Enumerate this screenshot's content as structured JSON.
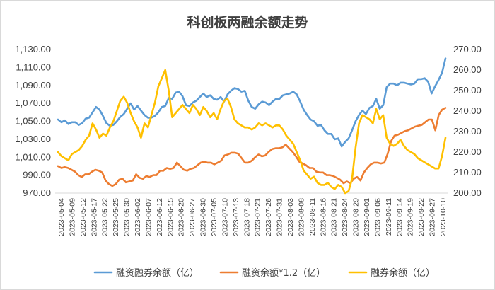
{
  "chart_data": {
    "type": "line",
    "title": "科创板两融余额走势",
    "grid": false,
    "legend_position": "bottom",
    "y_left": {
      "min": 970,
      "max": 1130,
      "ticks": [
        "970.00",
        "990.00",
        "1,010.00",
        "1,030.00",
        "1,050.00",
        "1,070.00",
        "1,090.00",
        "1,110.00",
        "1,130.00"
      ]
    },
    "y_right": {
      "min": 200,
      "max": 270,
      "ticks": [
        "200.00",
        "210.00",
        "220.00",
        "230.00",
        "240.00",
        "250.00",
        "260.00",
        "270.00"
      ]
    },
    "x_tick_labels": [
      "2023-05-04",
      "2023-05-09",
      "2023-05-12",
      "2023-05-17",
      "2023-05-22",
      "2023-05-25",
      "2023-05-30",
      "2023-06-02",
      "2023-06-07",
      "2023-06-12",
      "2023-06-15",
      "2023-06-20",
      "2023-06-27",
      "2023-06-30",
      "2023-07-05",
      "2023-07-10",
      "2023-07-13",
      "2023-07-18",
      "2023-07-21",
      "2023-07-26",
      "2023-07-31",
      "2023-08-03",
      "2023-08-08",
      "2023-08-11",
      "2023-08-16",
      "2023-08-21",
      "2023-08-24",
      "2023-08-29",
      "2023-09-01",
      "2023-09-06",
      "2023-09-11",
      "2023-09-14",
      "2023-09-19",
      "2023-09-22",
      "2023-09-27",
      "2023-10-10"
    ],
    "series": [
      {
        "name": "融资融券余额（亿）",
        "axis": "left",
        "color": "#5B9BD5",
        "values": [
          1052,
          1049,
          1051,
          1047,
          1049,
          1049,
          1046,
          1048,
          1053,
          1054,
          1060,
          1066,
          1063,
          1056,
          1048,
          1045,
          1046,
          1050,
          1055,
          1058,
          1064,
          1070,
          1063,
          1067,
          1062,
          1057,
          1054,
          1054,
          1056,
          1060,
          1066,
          1067,
          1076,
          1075,
          1082,
          1083,
          1078,
          1068,
          1067,
          1071,
          1073,
          1077,
          1081,
          1077,
          1079,
          1075,
          1074,
          1077,
          1072,
          1080,
          1084,
          1087,
          1086,
          1083,
          1084,
          1073,
          1066,
          1064,
          1069,
          1072,
          1071,
          1068,
          1072,
          1075,
          1075,
          1079,
          1080,
          1081,
          1083,
          1080,
          1072,
          1063,
          1057,
          1052,
          1050,
          1045,
          1046,
          1040,
          1036,
          1036,
          1030,
          1031,
          1022,
          1027,
          1031,
          1040,
          1050,
          1057,
          1062,
          1058,
          1065,
          1067,
          1075,
          1064,
          1068,
          1088,
          1092,
          1092,
          1090,
          1093,
          1093,
          1092,
          1091,
          1092,
          1097,
          1097,
          1098,
          1094,
          1081,
          1089,
          1096,
          1104,
          1120
        ]
      },
      {
        "name": "融资余额*1.2（亿）",
        "axis": "left",
        "color": "#ED7D31",
        "values": [
          1000,
          998,
          999,
          998,
          996,
          994,
          990,
          988,
          991,
          991,
          994,
          996,
          995,
          993,
          984,
          980,
          978,
          980,
          985,
          986,
          982,
          983,
          984,
          991,
          987,
          986,
          989,
          988,
          990,
          990,
          995,
          995,
          998,
          997,
          998,
          1004,
          1000,
          996,
          995,
          997,
          998,
          1001,
          1004,
          1005,
          1004,
          1004,
          1002,
          1004,
          1006,
          1012,
          1013,
          1015,
          1015,
          1014,
          1009,
          1004,
          1004,
          1006,
          1010,
          1013,
          1011,
          1012,
          1016,
          1019,
          1020,
          1020,
          1021,
          1024,
          1020,
          1016,
          1011,
          1005,
          1003,
          1001,
          998,
          998,
          994,
          993,
          993,
          990,
          990,
          989,
          987,
          985,
          981,
          983,
          981,
          986,
          988,
          984,
          993,
          998,
          1002,
          1004,
          1004,
          1003,
          1004,
          1014,
          1028,
          1034,
          1035,
          1037,
          1039,
          1040,
          1042,
          1044,
          1045,
          1046,
          1049,
          1052,
          1052,
          1040,
          1057,
          1063,
          1065
        ]
      },
      {
        "name": "融券余额（亿）",
        "axis": "right",
        "color": "#FFC000",
        "values": [
          220,
          218,
          217,
          216,
          219,
          220,
          221,
          223,
          226,
          228,
          234,
          231,
          227,
          229,
          228,
          232,
          235,
          240,
          245,
          247,
          244,
          239,
          235,
          232,
          227,
          234,
          232,
          238,
          244,
          252,
          256,
          260,
          250,
          237,
          239,
          241,
          243,
          241,
          239,
          243,
          241,
          238,
          242,
          240,
          237,
          239,
          236,
          241,
          245,
          246,
          242,
          236,
          234,
          233,
          232,
          232,
          231,
          232,
          234,
          233,
          234,
          233,
          232,
          233,
          233,
          231,
          228,
          226,
          224,
          220,
          216,
          211,
          209,
          207,
          208,
          205,
          204,
          204,
          205,
          203,
          202,
          204,
          203,
          200,
          201,
          207,
          222,
          234,
          238,
          237,
          236,
          234,
          241,
          236,
          238,
          227,
          224,
          223,
          224,
          226,
          223,
          221,
          220,
          219,
          217,
          216,
          215,
          214,
          213,
          212,
          212,
          218,
          227
        ]
      }
    ]
  }
}
